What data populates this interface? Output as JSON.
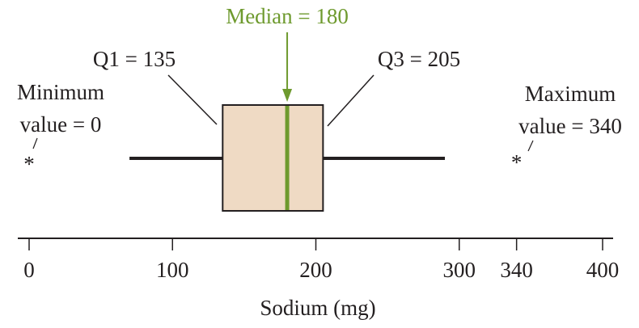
{
  "chart_data": {
    "type": "boxplot",
    "xlabel": "Sodium (mg)",
    "xlim": [
      0,
      400
    ],
    "ticks": [
      0,
      100,
      200,
      300,
      340,
      400
    ],
    "tick_labels": [
      "0",
      "100",
      "200",
      "300",
      "340",
      "400"
    ],
    "box": {
      "q1": 135,
      "median": 180,
      "q3": 205,
      "whisker_low": 70,
      "whisker_high": 290
    },
    "outliers": [
      0,
      340
    ],
    "annotations": {
      "median": "Median = 180",
      "q1": "Q1 = 135",
      "q3": "Q3 = 205",
      "min_line1": "Minimum",
      "min_line2": "value = 0",
      "max_line1": "Maximum",
      "max_line2": "value = 340"
    },
    "outlier_symbol": "*",
    "colors": {
      "box_fill": "#efdac4",
      "median": "#6e9a2e",
      "median_label": "#6e9a2e",
      "ink": "#231f20"
    }
  }
}
